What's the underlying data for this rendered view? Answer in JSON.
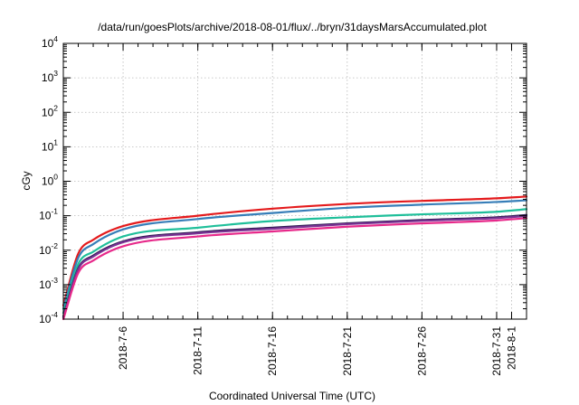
{
  "chart_data": {
    "type": "line",
    "title": "/data/run/goesPlots/archive/2018-08-01/flux/../bryn/31daysMarsAccumulated.plot",
    "xlabel": "Coordinated Universal Time (UTC)",
    "ylabel": "cGy",
    "y_scale": "log",
    "ylim": [
      0.0001,
      10000
    ],
    "xlim": [
      "2018-07-02",
      "2018-08-02"
    ],
    "grid": true,
    "legend": "none",
    "y_ticks": [
      {
        "base": "10",
        "exp": "-4",
        "value": 0.0001
      },
      {
        "base": "10",
        "exp": "-3",
        "value": 0.001
      },
      {
        "base": "10",
        "exp": "-2",
        "value": 0.01
      },
      {
        "base": "10",
        "exp": "-1",
        "value": 0.1
      },
      {
        "base": "10",
        "exp": "0",
        "value": 1
      },
      {
        "base": "10",
        "exp": "1",
        "value": 10
      },
      {
        "base": "10",
        "exp": "2",
        "value": 100
      },
      {
        "base": "10",
        "exp": "3",
        "value": 1000
      },
      {
        "base": "10",
        "exp": "4",
        "value": 10000
      }
    ],
    "x_ticks": [
      {
        "label": "2018-7-6",
        "date": "2018-07-06"
      },
      {
        "label": "2018-7-11",
        "date": "2018-07-11"
      },
      {
        "label": "2018-7-16",
        "date": "2018-07-16"
      },
      {
        "label": "2018-7-21",
        "date": "2018-07-21"
      },
      {
        "label": "2018-7-26",
        "date": "2018-07-26"
      },
      {
        "label": "2018-7-31",
        "date": "2018-07-31"
      },
      {
        "label": "2018-8-1",
        "date": "2018-08-01"
      }
    ],
    "x": [
      "2018-07-02",
      "2018-07-03",
      "2018-07-04",
      "2018-07-06",
      "2018-07-11",
      "2018-07-16",
      "2018-07-21",
      "2018-07-26",
      "2018-07-31",
      "2018-08-02"
    ],
    "series": [
      {
        "color": "#e41a1c",
        "values": [
          0.00025,
          0.008,
          0.02,
          0.05,
          0.1,
          0.16,
          0.22,
          0.27,
          0.32,
          0.36
        ]
      },
      {
        "color": "#377eb8",
        "values": [
          0.0002,
          0.006,
          0.015,
          0.04,
          0.08,
          0.12,
          0.17,
          0.21,
          0.25,
          0.28
        ]
      },
      {
        "color": "#1fbf9a",
        "values": [
          0.00015,
          0.004,
          0.009,
          0.025,
          0.045,
          0.07,
          0.09,
          0.11,
          0.13,
          0.155
        ]
      },
      {
        "color": "#2d1a52",
        "values": [
          0.00012,
          0.003,
          0.007,
          0.018,
          0.033,
          0.045,
          0.06,
          0.075,
          0.09,
          0.105
        ]
      },
      {
        "color": "#7b3294",
        "values": [
          0.00011,
          0.0028,
          0.0065,
          0.017,
          0.031,
          0.042,
          0.057,
          0.071,
          0.085,
          0.098
        ]
      },
      {
        "color": "#e7298a",
        "values": [
          0.0001,
          0.0022,
          0.005,
          0.013,
          0.025,
          0.035,
          0.048,
          0.06,
          0.073,
          0.085
        ]
      }
    ]
  }
}
